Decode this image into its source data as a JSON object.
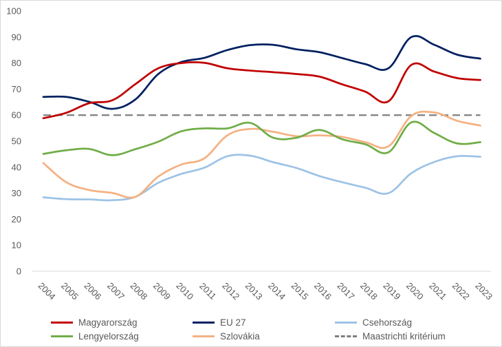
{
  "chart_data": {
    "type": "line",
    "title": "",
    "xlabel": "",
    "ylabel": "",
    "ylim": [
      0,
      100
    ],
    "yticks": [
      "0",
      "10",
      "20",
      "30",
      "40",
      "50",
      "60",
      "70",
      "80",
      "90",
      "100"
    ],
    "categories": [
      "2004",
      "2005",
      "2006",
      "2007",
      "2008",
      "2009",
      "2010",
      "2011",
      "2012",
      "2013",
      "2014",
      "2015",
      "2016",
      "2017",
      "2018",
      "2019",
      "2020",
      "2021",
      "2022",
      "2023"
    ],
    "grid": false,
    "legend_position": "bottom",
    "series": [
      {
        "key": "hu",
        "name": "Magyarország",
        "color": "#c00000",
        "dashed": false,
        "values": [
          58.8,
          60.9,
          64.6,
          65.7,
          71.9,
          78.0,
          80.0,
          80.1,
          78.0,
          77.1,
          76.5,
          75.8,
          74.8,
          71.8,
          69.0,
          65.3,
          79.3,
          76.7,
          74.2,
          73.5
        ]
      },
      {
        "key": "eu",
        "name": "EU 27",
        "color": "#002060",
        "dashed": false,
        "values": [
          67.0,
          67.0,
          65.1,
          62.4,
          66.0,
          75.8,
          80.4,
          82.0,
          85.0,
          86.9,
          87.0,
          85.3,
          84.2,
          81.9,
          79.6,
          78.0,
          90.0,
          87.0,
          83.2,
          81.7
        ]
      },
      {
        "key": "cz",
        "name": "Csehország",
        "color": "#9dc3e6",
        "dashed": false,
        "values": [
          28.4,
          27.7,
          27.6,
          27.3,
          28.6,
          34.0,
          37.4,
          39.8,
          44.2,
          44.4,
          41.9,
          39.7,
          36.6,
          34.2,
          32.1,
          30.0,
          37.7,
          42.0,
          44.2,
          44.0
        ]
      },
      {
        "key": "pl",
        "name": "Lengyelország",
        "color": "#70ad47",
        "dashed": false,
        "values": [
          45.1,
          46.5,
          47.0,
          44.6,
          46.9,
          49.8,
          53.8,
          54.9,
          54.9,
          57.0,
          51.3,
          51.3,
          54.3,
          50.7,
          48.8,
          45.7,
          57.2,
          53.1,
          49.1,
          49.6
        ]
      },
      {
        "key": "sk",
        "name": "Szlovákia",
        "color": "#f4b183",
        "dashed": false,
        "values": [
          41.6,
          34.2,
          31.2,
          30.1,
          28.6,
          36.4,
          41.0,
          43.4,
          52.2,
          54.7,
          53.6,
          51.9,
          52.2,
          51.6,
          49.6,
          48.0,
          59.7,
          61.0,
          57.8,
          56.0
        ]
      },
      {
        "key": "maa",
        "name": "Maastrichti kritérium",
        "color": "#7f7f7f",
        "dashed": true,
        "values": [
          60,
          60,
          60,
          60,
          60,
          60,
          60,
          60,
          60,
          60,
          60,
          60,
          60,
          60,
          60,
          60,
          60,
          60,
          60,
          60
        ]
      }
    ]
  }
}
